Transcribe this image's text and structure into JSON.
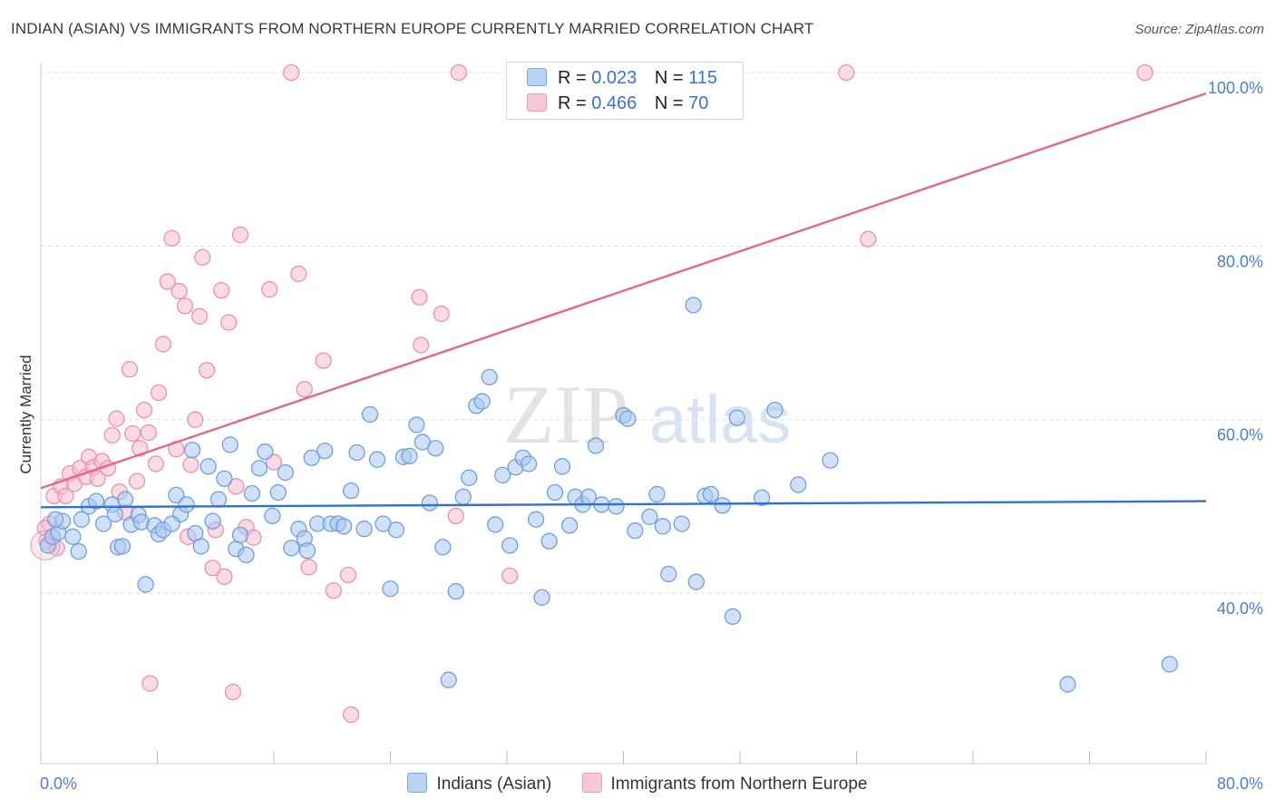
{
  "title": "INDIAN (ASIAN) VS IMMIGRANTS FROM NORTHERN EUROPE CURRENTLY MARRIED CORRELATION CHART",
  "source": "Source: ZipAtlas.com",
  "watermark": {
    "zip": "ZIP",
    "atlas": "atlas"
  },
  "legend": {
    "r_label": "R =",
    "n_label": "N =",
    "rows": [
      {
        "r": "0.023",
        "n": "115"
      },
      {
        "r": "0.466",
        "n": "70"
      }
    ]
  },
  "colors": {
    "blue_fill": "#a9c8f0",
    "blue_stroke": "#6f9fdc",
    "blue_line": "#2f72d0",
    "pink_fill": "#f6bdd0",
    "pink_stroke": "#ec8fb0",
    "pink_line": "#e56592",
    "axis_text": "#4a7fd0"
  },
  "chart_data": {
    "type": "scatter",
    "title": "INDIAN (ASIAN) VS IMMIGRANTS FROM NORTHERN EUROPE CURRENTLY MARRIED CORRELATION CHART",
    "xlabel": "",
    "ylabel": "Currently Married",
    "xlim": [
      0,
      80
    ],
    "ylim": [
      20,
      102
    ],
    "x_tick_labels": [
      "0.0%",
      "80.0%"
    ],
    "y_ticks": [
      40,
      60,
      80,
      100
    ],
    "y_tick_labels": [
      "40.0%",
      "60.0%",
      "80.0%",
      "100.0%"
    ],
    "grid": true,
    "series": [
      {
        "name": "Indians (Asian)",
        "r": 0.023,
        "n": 115,
        "trend": {
          "x": [
            0,
            80
          ],
          "y": [
            49.9,
            50.6
          ]
        },
        "points": [
          [
            0.5,
            45.5
          ],
          [
            0.8,
            46.5
          ],
          [
            1.2,
            47
          ],
          [
            1.5,
            48.3
          ],
          [
            2.2,
            46.5
          ],
          [
            2.6,
            44.8
          ],
          [
            3.3,
            50
          ],
          [
            3.8,
            50.6
          ],
          [
            4.3,
            48
          ],
          [
            4.9,
            50.2
          ],
          [
            5.1,
            49.1
          ],
          [
            5.3,
            45.3
          ],
          [
            5.8,
            50.8
          ],
          [
            6.2,
            47.9
          ],
          [
            6.7,
            49
          ],
          [
            6.9,
            48.2
          ],
          [
            7.2,
            41
          ],
          [
            7.8,
            47.8
          ],
          [
            8.1,
            46.8
          ],
          [
            8.4,
            47.3
          ],
          [
            9.3,
            51.3
          ],
          [
            9.6,
            49.1
          ],
          [
            10.0,
            50.2
          ],
          [
            10.4,
            56.5
          ],
          [
            10.6,
            46.9
          ],
          [
            11.0,
            45.4
          ],
          [
            11.5,
            54.6
          ],
          [
            11.8,
            48.3
          ],
          [
            12.2,
            50.8
          ],
          [
            12.6,
            53.2
          ],
          [
            13.0,
            57.1
          ],
          [
            13.4,
            45.1
          ],
          [
            13.7,
            46.7
          ],
          [
            14.1,
            44.4
          ],
          [
            14.5,
            51.5
          ],
          [
            15.0,
            54.4
          ],
          [
            15.4,
            56.3
          ],
          [
            15.9,
            48.9
          ],
          [
            16.3,
            51.6
          ],
          [
            16.8,
            53.9
          ],
          [
            17.2,
            45.2
          ],
          [
            17.7,
            47.4
          ],
          [
            18.1,
            46.3
          ],
          [
            18.6,
            55.6
          ],
          [
            19.0,
            48
          ],
          [
            19.5,
            56.4
          ],
          [
            19.9,
            48
          ],
          [
            20.4,
            48
          ],
          [
            20.8,
            47.7
          ],
          [
            21.3,
            51.8
          ],
          [
            21.7,
            56.2
          ],
          [
            22.2,
            47.4
          ],
          [
            22.6,
            60.6
          ],
          [
            23.1,
            55.4
          ],
          [
            23.5,
            48
          ],
          [
            24.0,
            40.5
          ],
          [
            24.4,
            47.3
          ],
          [
            24.9,
            55.7
          ],
          [
            25.3,
            55.8
          ],
          [
            25.8,
            59.4
          ],
          [
            26.2,
            57.4
          ],
          [
            26.7,
            50.4
          ],
          [
            27.1,
            56.7
          ],
          [
            27.6,
            45.3
          ],
          [
            28.0,
            30
          ],
          [
            28.5,
            40.2
          ],
          [
            29.0,
            51.1
          ],
          [
            29.4,
            53.3
          ],
          [
            29.9,
            61.6
          ],
          [
            30.3,
            62.1
          ],
          [
            30.8,
            64.9
          ],
          [
            31.2,
            47.9
          ],
          [
            31.7,
            53.6
          ],
          [
            32.2,
            45.5
          ],
          [
            32.6,
            54.5
          ],
          [
            33.1,
            55.6
          ],
          [
            33.5,
            54.9
          ],
          [
            34.0,
            48.5
          ],
          [
            34.4,
            39.5
          ],
          [
            34.9,
            46
          ],
          [
            35.3,
            51.6
          ],
          [
            35.8,
            54.6
          ],
          [
            36.3,
            47.8
          ],
          [
            36.7,
            51.1
          ],
          [
            37.2,
            50.2
          ],
          [
            37.6,
            51.1
          ],
          [
            38.1,
            57
          ],
          [
            38.5,
            50.2
          ],
          [
            39.5,
            50
          ],
          [
            40.0,
            60.5
          ],
          [
            40.3,
            60.1
          ],
          [
            40.8,
            47.2
          ],
          [
            41.8,
            48.8
          ],
          [
            42.3,
            51.4
          ],
          [
            42.7,
            47.7
          ],
          [
            43.1,
            42.2
          ],
          [
            44.0,
            48
          ],
          [
            44.8,
            73.2
          ],
          [
            45.0,
            41.3
          ],
          [
            45.6,
            51.2
          ],
          [
            46.0,
            51.4
          ],
          [
            46.8,
            50.1
          ],
          [
            47.5,
            37.3
          ],
          [
            47.8,
            60.2
          ],
          [
            49.5,
            51
          ],
          [
            50.4,
            61.1
          ],
          [
            52.0,
            52.5
          ],
          [
            54.2,
            55.3
          ],
          [
            70.5,
            29.5
          ],
          [
            77.5,
            31.8
          ],
          [
            1.0,
            48.5
          ],
          [
            2.8,
            48.5
          ],
          [
            5.6,
            45.4
          ],
          [
            9.0,
            48
          ],
          [
            18.3,
            44.9
          ]
        ]
      },
      {
        "name": "Immigrants from Northern Europe",
        "r": 0.466,
        "n": 70,
        "trend": {
          "x": [
            0,
            80
          ],
          "y": [
            52.1,
            97.6
          ]
        },
        "points": [
          [
            0.4,
            46
          ],
          [
            0.6,
            48
          ],
          [
            0.9,
            51.2
          ],
          [
            1.1,
            45.2
          ],
          [
            1.4,
            52.3
          ],
          [
            1.7,
            51.2
          ],
          [
            2.0,
            53.8
          ],
          [
            2.3,
            52.6
          ],
          [
            2.7,
            54.4
          ],
          [
            3.1,
            53.4
          ],
          [
            3.3,
            55.7
          ],
          [
            3.6,
            54.5
          ],
          [
            3.9,
            53.2
          ],
          [
            4.2,
            55.2
          ],
          [
            4.6,
            54.4
          ],
          [
            4.9,
            58.2
          ],
          [
            5.2,
            60.1
          ],
          [
            5.4,
            51.7
          ],
          [
            5.8,
            49.3
          ],
          [
            6.1,
            65.8
          ],
          [
            6.3,
            58.4
          ],
          [
            6.6,
            52.9
          ],
          [
            6.8,
            56.7
          ],
          [
            7.1,
            61.1
          ],
          [
            7.4,
            58.5
          ],
          [
            7.5,
            29.6
          ],
          [
            7.9,
            54.9
          ],
          [
            8.1,
            63.1
          ],
          [
            8.4,
            68.7
          ],
          [
            8.7,
            75.9
          ],
          [
            9.0,
            80.9
          ],
          [
            9.3,
            56.6
          ],
          [
            9.5,
            74.8
          ],
          [
            9.9,
            73.1
          ],
          [
            10.1,
            46.5
          ],
          [
            10.3,
            54.8
          ],
          [
            10.6,
            60
          ],
          [
            10.9,
            71.9
          ],
          [
            11.1,
            78.7
          ],
          [
            11.4,
            65.7
          ],
          [
            11.8,
            42.9
          ],
          [
            12.0,
            47.3
          ],
          [
            12.4,
            74.9
          ],
          [
            12.6,
            41.9
          ],
          [
            12.9,
            71.2
          ],
          [
            13.2,
            28.6
          ],
          [
            13.4,
            52.3
          ],
          [
            13.7,
            81.3
          ],
          [
            14.1,
            47.6
          ],
          [
            14.6,
            46.4
          ],
          [
            15.7,
            75
          ],
          [
            16.0,
            55.1
          ],
          [
            17.7,
            76.8
          ],
          [
            18.1,
            63.5
          ],
          [
            18.4,
            43
          ],
          [
            19.4,
            66.8
          ],
          [
            20.1,
            40.3
          ],
          [
            21.1,
            42.1
          ],
          [
            21.3,
            26
          ],
          [
            26.0,
            74.1
          ],
          [
            26.1,
            68.6
          ],
          [
            27.5,
            72.2
          ],
          [
            28.5,
            48.9
          ],
          [
            32.2,
            42
          ],
          [
            17.2,
            100
          ],
          [
            28.7,
            100
          ],
          [
            55.3,
            100
          ],
          [
            56.8,
            80.8
          ],
          [
            75.8,
            100
          ],
          [
            0.3,
            47.5
          ]
        ]
      }
    ]
  },
  "bottom_legend": [
    "Indians (Asian)",
    "Immigrants from Northern Europe"
  ]
}
